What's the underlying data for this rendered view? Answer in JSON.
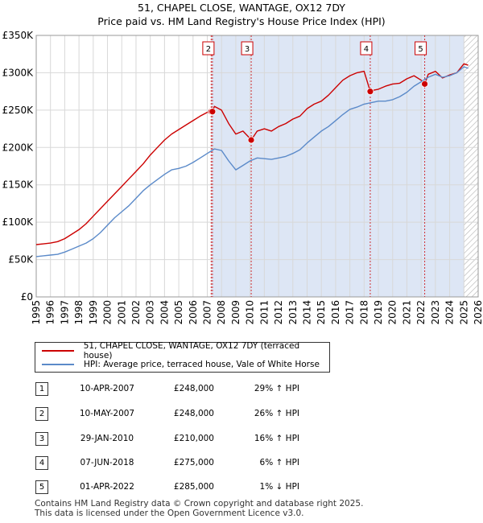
{
  "title": "51, CHAPEL CLOSE, WANTAGE, OX12 7DY",
  "subtitle": "Price paid vs. HM Land Registry's House Price Index (HPI)",
  "colors": {
    "property": "#cc0000",
    "hpi": "#5b8ac9",
    "shade": "#dde6f5",
    "hatch": "#b0b0b0",
    "grid": "#d8d8d8"
  },
  "chart_data": {
    "type": "line",
    "xlim": [
      1995,
      2026
    ],
    "ylim": [
      0,
      350000
    ],
    "y_ticks": [
      {
        "value": 0,
        "label": "£0"
      },
      {
        "value": 50000,
        "label": "£50K"
      },
      {
        "value": 100000,
        "label": "£100K"
      },
      {
        "value": 150000,
        "label": "£150K"
      },
      {
        "value": 200000,
        "label": "£200K"
      },
      {
        "value": 250000,
        "label": "£250K"
      },
      {
        "value": 300000,
        "label": "£300K"
      },
      {
        "value": 350000,
        "label": "£350K"
      }
    ],
    "x_ticks": [
      "1995",
      "1996",
      "1997",
      "1998",
      "1999",
      "2000",
      "2001",
      "2002",
      "2003",
      "2004",
      "2005",
      "2006",
      "2007",
      "2008",
      "2009",
      "2010",
      "2011",
      "2012",
      "2013",
      "2014",
      "2015",
      "2016",
      "2017",
      "2018",
      "2019",
      "2020",
      "2021",
      "2022",
      "2023",
      "2024",
      "2025",
      "2026"
    ],
    "series": [
      {
        "name": "51, CHAPEL CLOSE, WANTAGE, OX12 7DY (terraced house)",
        "color": "#cc0000",
        "x": [
          1995.0,
          1995.5,
          1996.0,
          1996.5,
          1997.0,
          1997.5,
          1998.0,
          1998.5,
          1999.0,
          1999.5,
          2000.0,
          2000.5,
          2001.0,
          2001.5,
          2002.0,
          2002.5,
          2003.0,
          2003.5,
          2004.0,
          2004.5,
          2005.0,
          2005.5,
          2006.0,
          2006.5,
          2007.0,
          2007.27,
          2007.36,
          2007.5,
          2008.0,
          2008.5,
          2009.0,
          2009.5,
          2010.0,
          2010.08,
          2010.5,
          2011.0,
          2011.5,
          2012.0,
          2012.5,
          2013.0,
          2013.5,
          2014.0,
          2014.5,
          2015.0,
          2015.5,
          2016.0,
          2016.5,
          2017.0,
          2017.5,
          2018.0,
          2018.43,
          2018.5,
          2019.0,
          2019.5,
          2020.0,
          2020.5,
          2021.0,
          2021.5,
          2022.0,
          2022.25,
          2022.5,
          2023.0,
          2023.5,
          2024.0,
          2024.5,
          2025.0,
          2025.3
        ],
        "values": [
          70000,
          71000,
          72000,
          74000,
          78000,
          84000,
          90000,
          98000,
          108000,
          118000,
          128000,
          138000,
          148000,
          158000,
          168000,
          178000,
          190000,
          200000,
          210000,
          218000,
          224000,
          230000,
          236000,
          242000,
          247000,
          248000,
          248000,
          255000,
          250000,
          232000,
          218000,
          222000,
          212000,
          210000,
          222000,
          225000,
          222000,
          228000,
          232000,
          238000,
          242000,
          252000,
          258000,
          262000,
          270000,
          280000,
          290000,
          296000,
          300000,
          302000,
          275000,
          276000,
          278000,
          282000,
          285000,
          286000,
          292000,
          296000,
          290000,
          285000,
          298000,
          302000,
          293000,
          297000,
          300000,
          312000,
          310000
        ]
      },
      {
        "name": "HPI: Average price, terraced house, Vale of White Horse",
        "color": "#5b8ac9",
        "x": [
          1995.0,
          1995.5,
          1996.0,
          1996.5,
          1997.0,
          1997.5,
          1998.0,
          1998.5,
          1999.0,
          1999.5,
          2000.0,
          2000.5,
          2001.0,
          2001.5,
          2002.0,
          2002.5,
          2003.0,
          2003.5,
          2004.0,
          2004.5,
          2005.0,
          2005.5,
          2006.0,
          2006.5,
          2007.0,
          2007.5,
          2008.0,
          2008.5,
          2009.0,
          2009.5,
          2010.0,
          2010.5,
          2011.0,
          2011.5,
          2012.0,
          2012.5,
          2013.0,
          2013.5,
          2014.0,
          2014.5,
          2015.0,
          2015.5,
          2016.0,
          2016.5,
          2017.0,
          2017.5,
          2018.0,
          2018.5,
          2019.0,
          2019.5,
          2020.0,
          2020.5,
          2021.0,
          2021.5,
          2022.0,
          2022.5,
          2023.0,
          2023.5,
          2024.0,
          2024.5,
          2025.0,
          2025.3
        ],
        "values": [
          54000,
          55000,
          56000,
          57000,
          60000,
          64000,
          68000,
          72000,
          78000,
          86000,
          96000,
          106000,
          114000,
          122000,
          132000,
          142000,
          150000,
          157000,
          164000,
          170000,
          172000,
          175000,
          180000,
          186000,
          192000,
          198000,
          196000,
          182000,
          170000,
          176000,
          182000,
          186000,
          185000,
          184000,
          186000,
          188000,
          192000,
          197000,
          206000,
          214000,
          222000,
          228000,
          236000,
          244000,
          251000,
          254000,
          258000,
          260000,
          262000,
          262000,
          264000,
          268000,
          274000,
          282000,
          288000,
          294000,
          298000,
          294000,
          296000,
          300000,
          308000,
          306000
        ]
      }
    ],
    "transactions": [
      {
        "id": "1",
        "date": "10-APR-2007",
        "x": 2007.27,
        "price_value": 248000,
        "price": "£248,000",
        "hpi": "29% ↑ HPI"
      },
      {
        "id": "2",
        "date": "10-MAY-2007",
        "x": 2007.36,
        "price_value": 248000,
        "price": "£248,000",
        "hpi": "26% ↑ HPI"
      },
      {
        "id": "3",
        "date": "29-JAN-2010",
        "x": 2010.08,
        "price_value": 210000,
        "price": "£210,000",
        "hpi": "16% ↑ HPI"
      },
      {
        "id": "4",
        "date": "07-JUN-2018",
        "x": 2018.43,
        "price_value": 275000,
        "price": "£275,000",
        "hpi": "6% ↑ HPI"
      },
      {
        "id": "5",
        "date": "01-APR-2022",
        "x": 2022.25,
        "price_value": 285000,
        "price": "£285,000",
        "hpi": "1% ↓ HPI"
      }
    ],
    "chart_labels": [
      "2",
      "3",
      "4",
      "5"
    ],
    "shaded_from": 2007.27,
    "hatch_from": 2025.0
  },
  "legend": {
    "property": "51, CHAPEL CLOSE, WANTAGE, OX12 7DY (terraced house)",
    "hpi": "HPI: Average price, terraced house, Vale of White Horse"
  },
  "footer": {
    "line1": "Contains HM Land Registry data © Crown copyright and database right 2025.",
    "line2": "This data is licensed under the Open Government Licence v3.0."
  }
}
